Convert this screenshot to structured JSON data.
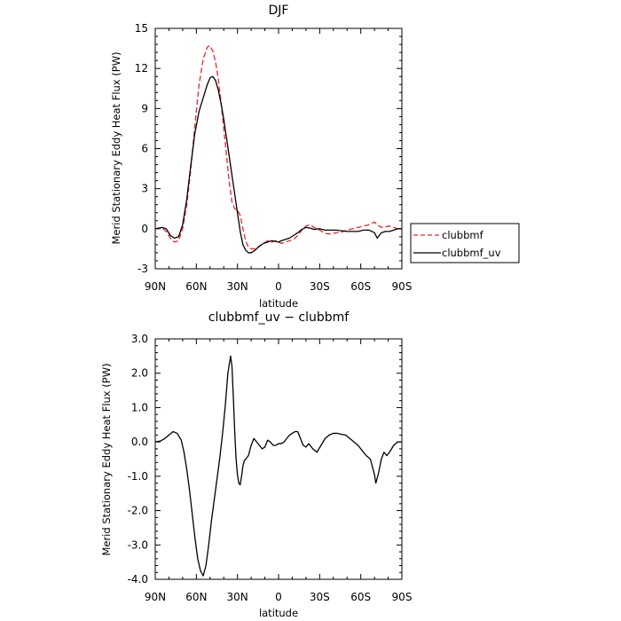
{
  "chart_data": [
    {
      "type": "line",
      "title": "DJF",
      "xlabel": "latitude",
      "ylabel": "Merid Stationary Eddy Heat Flux (PW)",
      "xlim": [
        90,
        -90
      ],
      "ylim": [
        -3,
        15
      ],
      "x_ticks": [
        90,
        60,
        30,
        0,
        -30,
        -60,
        -90
      ],
      "x_tick_labels": [
        "90N",
        "60N",
        "30N",
        "0",
        "30S",
        "60S",
        "90S"
      ],
      "y_ticks": [
        -3,
        0,
        3,
        6,
        9,
        12,
        15
      ],
      "y_tick_labels": [
        "-3",
        "0",
        "3",
        "6",
        "9",
        "12",
        "15"
      ],
      "grid": false,
      "legend": {
        "placement": "outside-right"
      },
      "series": [
        {
          "name": "clubbmf",
          "color": "#e8262b",
          "dash": "dashed",
          "x": [
            90,
            85,
            82,
            79,
            76,
            73,
            70,
            67,
            64,
            61,
            58,
            55,
            52,
            50,
            48,
            46,
            44,
            42,
            40,
            38,
            36,
            34,
            32,
            30,
            28,
            26,
            24,
            22,
            20,
            17,
            14,
            11,
            8,
            5,
            2,
            0,
            -2,
            -5,
            -8,
            -11,
            -14,
            -17,
            -20,
            -23,
            -26,
            -30,
            -34,
            -38,
            -42,
            -46,
            -50,
            -54,
            -58,
            -62,
            -66,
            -70,
            -72,
            -75,
            -78,
            -81,
            -84,
            -87,
            -90
          ],
          "y": [
            0.0,
            0.05,
            -0.2,
            -0.7,
            -1.0,
            -0.9,
            0.0,
            1.8,
            4.5,
            7.8,
            10.8,
            12.7,
            13.6,
            13.7,
            13.3,
            12.5,
            11.2,
            9.5,
            7.5,
            5.5,
            3.5,
            2.0,
            1.5,
            1.4,
            1.0,
            0.0,
            -0.9,
            -1.4,
            -1.5,
            -1.5,
            -1.3,
            -1.1,
            -0.9,
            -1.0,
            -0.9,
            -1.0,
            -1.1,
            -1.0,
            -0.9,
            -0.8,
            -0.5,
            -0.1,
            0.2,
            0.3,
            0.1,
            -0.1,
            -0.35,
            -0.4,
            -0.3,
            -0.25,
            -0.1,
            0.0,
            0.1,
            0.2,
            0.3,
            0.5,
            0.3,
            0.1,
            0.15,
            0.2,
            0.1,
            0.0,
            0.0
          ]
        },
        {
          "name": "clubbmf_uv",
          "color": "#000000",
          "dash": "solid",
          "x": [
            90,
            85,
            82,
            79,
            76,
            73,
            70,
            67,
            64,
            61,
            58,
            55,
            52,
            50,
            48,
            46,
            44,
            42,
            40,
            38,
            36,
            34,
            32,
            30,
            28,
            26,
            24,
            22,
            20,
            17,
            14,
            11,
            8,
            5,
            2,
            0,
            -2,
            -5,
            -8,
            -11,
            -14,
            -17,
            -20,
            -23,
            -26,
            -30,
            -34,
            -38,
            -42,
            -46,
            -50,
            -54,
            -58,
            -62,
            -66,
            -70,
            -72,
            -75,
            -78,
            -81,
            -84,
            -87,
            -90
          ],
          "y": [
            0.0,
            0.1,
            0.0,
            -0.5,
            -0.7,
            -0.6,
            0.3,
            2.2,
            4.8,
            7.2,
            8.8,
            9.8,
            10.8,
            11.3,
            11.4,
            11.1,
            10.4,
            9.4,
            8.2,
            6.8,
            5.4,
            4.0,
            2.6,
            1.2,
            -0.2,
            -1.2,
            -1.6,
            -1.8,
            -1.8,
            -1.6,
            -1.3,
            -1.1,
            -1.0,
            -0.9,
            -0.95,
            -1.0,
            -0.9,
            -0.8,
            -0.7,
            -0.5,
            -0.3,
            -0.05,
            0.1,
            0.05,
            -0.05,
            0.0,
            -0.1,
            -0.1,
            -0.1,
            -0.15,
            -0.2,
            -0.2,
            -0.2,
            -0.1,
            -0.1,
            -0.3,
            -0.7,
            -0.3,
            -0.2,
            -0.2,
            -0.1,
            0.0,
            0.0
          ]
        }
      ]
    },
    {
      "type": "line",
      "title": "clubbmf_uv − clubbmf",
      "xlabel": "latitude",
      "ylabel": "Merid Stationary Eddy Heat Flux (PW)",
      "xlim": [
        90,
        -90
      ],
      "ylim": [
        -4,
        3
      ],
      "x_ticks": [
        90,
        60,
        30,
        0,
        -30,
        -60,
        -90
      ],
      "x_tick_labels": [
        "90N",
        "60N",
        "30N",
        "0",
        "30S",
        "60S",
        "90S"
      ],
      "y_ticks": [
        -4,
        -3,
        -2,
        -1,
        0,
        1,
        2,
        3
      ],
      "y_tick_labels": [
        "-4.0",
        "-3.0",
        "-2.0",
        "-1.0",
        "0.0",
        "1.0",
        "2.0",
        "3.0"
      ],
      "grid": false,
      "series": [
        {
          "color": "#000000",
          "dash": "solid",
          "x": [
            90,
            86,
            83,
            80,
            77,
            74,
            71,
            69,
            67,
            65,
            63,
            61,
            59,
            57,
            55,
            53,
            51,
            49,
            47,
            45,
            43,
            41,
            39,
            37,
            35,
            34,
            33,
            32,
            31,
            30,
            29,
            28,
            27,
            26,
            25,
            24,
            22,
            20,
            18,
            16,
            14,
            12,
            10,
            8,
            6,
            4,
            2,
            0,
            -2,
            -4,
            -6,
            -8,
            -10,
            -12,
            -14,
            -16,
            -18,
            -20,
            -22,
            -25,
            -28,
            -31,
            -34,
            -37,
            -40,
            -43,
            -46,
            -49,
            -52,
            -55,
            -58,
            -61,
            -64,
            -67,
            -70,
            -71,
            -73,
            -75,
            -77,
            -79,
            -81,
            -84,
            -87,
            -90
          ],
          "y": [
            0.0,
            0.03,
            0.1,
            0.2,
            0.3,
            0.25,
            0.05,
            -0.3,
            -0.8,
            -1.4,
            -2.1,
            -2.8,
            -3.4,
            -3.75,
            -3.9,
            -3.6,
            -3.0,
            -2.3,
            -1.7,
            -1.1,
            -0.5,
            0.2,
            1.0,
            2.0,
            2.5,
            2.2,
            1.3,
            0.3,
            -0.5,
            -0.95,
            -1.2,
            -1.25,
            -1.0,
            -0.7,
            -0.55,
            -0.5,
            -0.4,
            -0.1,
            0.1,
            0.0,
            -0.1,
            -0.2,
            -0.15,
            0.05,
            0.0,
            -0.1,
            -0.1,
            -0.05,
            -0.05,
            0.0,
            0.1,
            0.2,
            0.25,
            0.3,
            0.3,
            0.1,
            -0.1,
            -0.15,
            -0.05,
            -0.2,
            -0.3,
            -0.1,
            0.1,
            0.2,
            0.25,
            0.25,
            0.22,
            0.2,
            0.1,
            0.0,
            -0.1,
            -0.25,
            -0.4,
            -0.5,
            -0.95,
            -1.2,
            -0.9,
            -0.5,
            -0.3,
            -0.4,
            -0.3,
            -0.1,
            0.0,
            0.0
          ]
        }
      ]
    }
  ]
}
